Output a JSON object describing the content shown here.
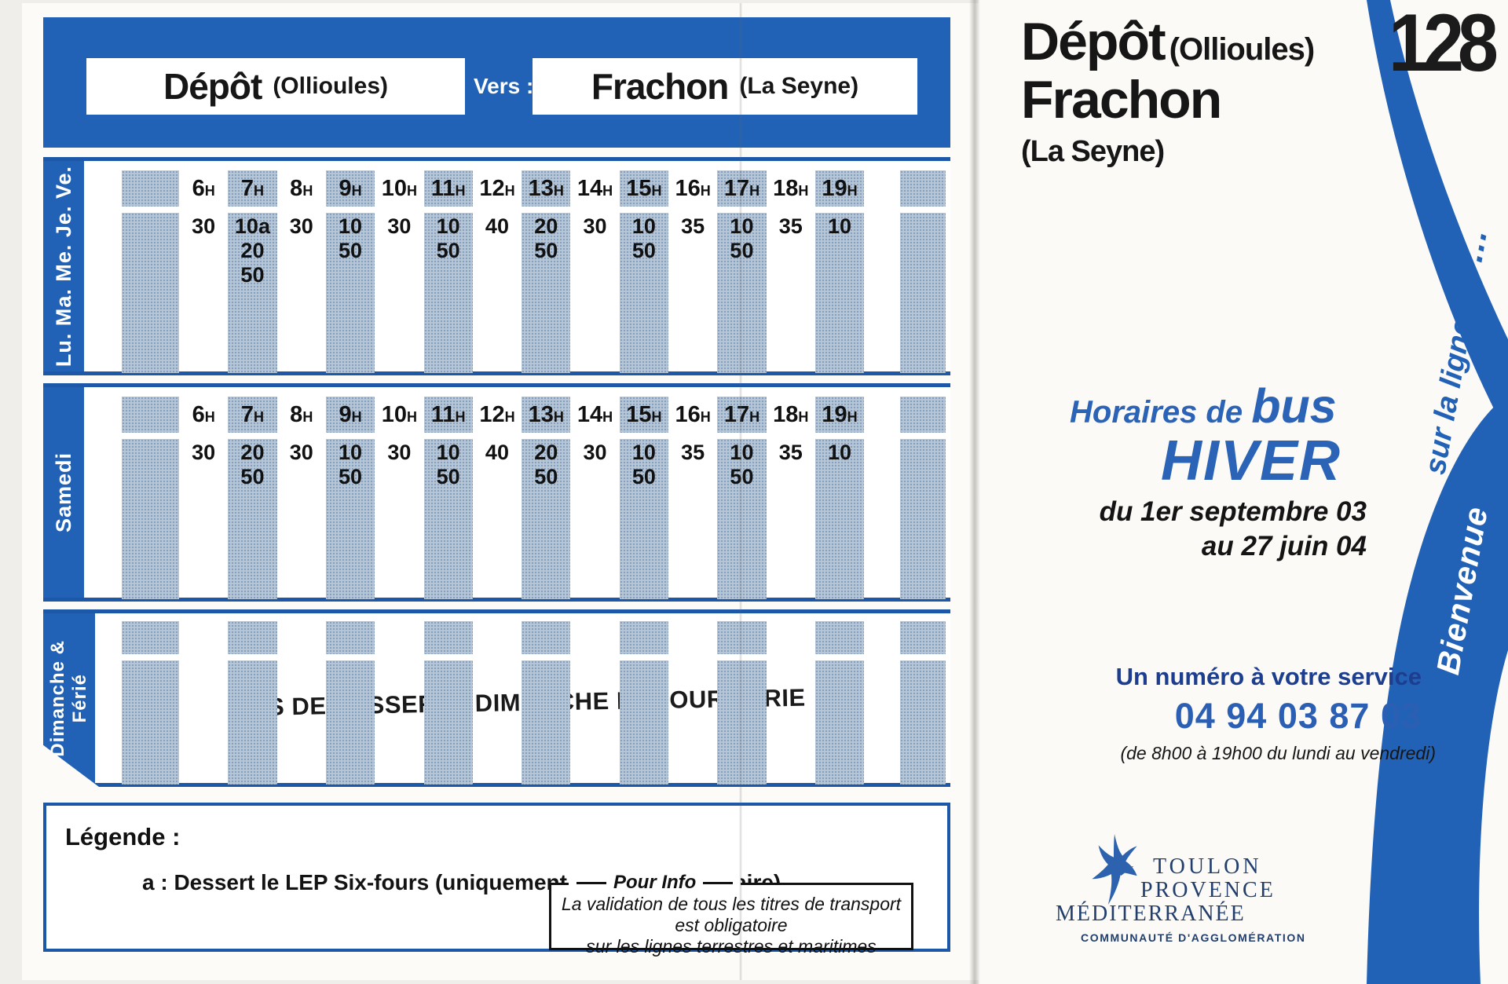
{
  "left": {
    "header": {
      "from": "Dépôt",
      "from_sub": "(Ollioules)",
      "vers": "Vers :",
      "to": "Frachon",
      "to_sub": "(La Seyne)"
    },
    "hour_suffix": "H",
    "tables": [
      {
        "day": "Lu. Ma. Me. Je. Ve.",
        "hours": [
          "6",
          "7",
          "8",
          "9",
          "10",
          "11",
          "12",
          "13",
          "14",
          "15",
          "16",
          "17",
          "18",
          "19"
        ],
        "minutes": [
          [
            "30"
          ],
          [
            "10a",
            "20",
            "50"
          ],
          [
            "30"
          ],
          [
            "10",
            "50"
          ],
          [
            "30"
          ],
          [
            "10",
            "50"
          ],
          [
            "40"
          ],
          [
            "20",
            "50"
          ],
          [
            "30"
          ],
          [
            "10",
            "50"
          ],
          [
            "35"
          ],
          [
            "10",
            "50"
          ],
          [
            "35"
          ],
          [
            "10"
          ]
        ]
      },
      {
        "day": "Samedi",
        "hours": [
          "6",
          "7",
          "8",
          "9",
          "10",
          "11",
          "12",
          "13",
          "14",
          "15",
          "16",
          "17",
          "18",
          "19"
        ],
        "minutes": [
          [
            "30"
          ],
          [
            "20",
            "50"
          ],
          [
            "30"
          ],
          [
            "10",
            "50"
          ],
          [
            "30"
          ],
          [
            "10",
            "50"
          ],
          [
            "40"
          ],
          [
            "20",
            "50"
          ],
          [
            "30"
          ],
          [
            "10",
            "50"
          ],
          [
            "35"
          ],
          [
            "10",
            "50"
          ],
          [
            "35"
          ],
          [
            "10"
          ]
        ]
      },
      {
        "day_line1": "Dimanche &",
        "day_line2": "Férié",
        "notice": "PAS DE DESSERTE DIMANCHE ET JOUR FERIE"
      }
    ],
    "legend": {
      "title": "Légende :",
      "item": "a : Dessert le LEP Six-fours (uniquement en période scolaire)",
      "info_title": "Pour Info",
      "info_line1": "La  validation de tous les titres de transport est obligatoire",
      "info_line2": "sur les lignes terrestres et maritimes"
    }
  },
  "right": {
    "route_number": "128",
    "title_from": "Dépôt",
    "title_from_sub": "(Ollioules)",
    "title_to": "Frachon",
    "title_to_sub": "(La Seyne)",
    "season": {
      "pre": "Horaires de ",
      "bus": "bus",
      "name": "HIVER",
      "date_from": "du 1er septembre 03",
      "date_to": "au 27 juin 04"
    },
    "contact": {
      "label": "Un numéro à votre service",
      "phone": "04 94 03 87 03",
      "hours": "(de 8h00 à 19h00 du lundi au vendredi)"
    },
    "logo": {
      "line1": "TOULON",
      "line2": "PROVENCE",
      "line3": "MÉDITERRANÉE",
      "line4": "COMMUNAUTÉ D'AGGLOMÉRATION"
    },
    "ribbon": {
      "welcome": "Bienvenue",
      "line": "sur la ligne",
      "dots": "..."
    }
  },
  "colors": {
    "brand_blue": "#2262b6",
    "border_blue": "#1c57a8",
    "halftone_column": "#b6c6d7",
    "season_blue": "#2b63b7",
    "phone_blue": "#2a5fb4",
    "navy_label": "#1d3e8f",
    "logo_navy": "#223e6d",
    "text_black": "#161616"
  }
}
